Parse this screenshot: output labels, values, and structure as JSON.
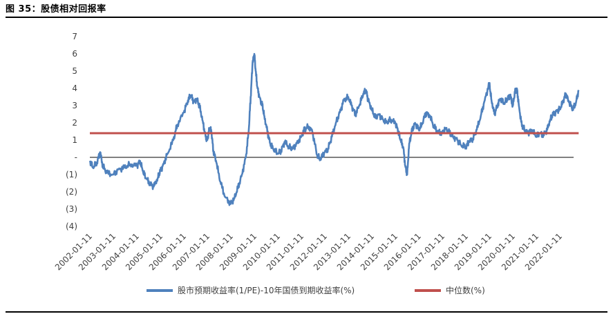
{
  "figure_title": "图 35：股债相对回报率",
  "chart_data": {
    "type": "line",
    "title": "股债相对回报率",
    "ylim": [
      -4,
      7
    ],
    "y_ticks": [
      {
        "value": 7,
        "label": "7"
      },
      {
        "value": 6,
        "label": "6"
      },
      {
        "value": 5,
        "label": "5"
      },
      {
        "value": 4,
        "label": "4"
      },
      {
        "value": 3,
        "label": "3"
      },
      {
        "value": 2,
        "label": "2"
      },
      {
        "value": 1,
        "label": "1"
      },
      {
        "value": 0,
        "label": "-"
      },
      {
        "value": -1,
        "label": "(1)"
      },
      {
        "value": -2,
        "label": "(2)"
      },
      {
        "value": -3,
        "label": "(3)"
      },
      {
        "value": -4,
        "label": "(4)"
      }
    ],
    "x_ticks": [
      "2002-01-11",
      "2003-01-11",
      "2004-01-11",
      "2005-01-11",
      "2006-01-11",
      "2007-01-11",
      "2008-01-11",
      "2009-01-11",
      "2010-01-11",
      "2011-01-11",
      "2012-01-11",
      "2013-01-11",
      "2014-01-11",
      "2015-01-11",
      "2016-01-11",
      "2017-01-11",
      "2018-01-11",
      "2019-01-11",
      "2020-01-11",
      "2021-01-11",
      "2022-01-11"
    ],
    "xlim": [
      "2002-01-11",
      "2022-10-31"
    ],
    "grid": false,
    "legend_position": "bottom",
    "series": [
      {
        "name": "股市预期收益率(1/PE)-10年国债到期收益率(%)",
        "color": "#4F81BD",
        "points": [
          [
            "2002-01-11",
            -0.2
          ],
          [
            "2002-03-01",
            -0.6
          ],
          [
            "2002-05-01",
            -0.3
          ],
          [
            "2002-06-20",
            0.3
          ],
          [
            "2002-08-01",
            -0.5
          ],
          [
            "2002-10-01",
            -0.9
          ],
          [
            "2003-01-11",
            -1.0
          ],
          [
            "2003-04-01",
            -0.7
          ],
          [
            "2003-07-01",
            -0.6
          ],
          [
            "2003-10-01",
            -0.4
          ],
          [
            "2004-01-11",
            -0.5
          ],
          [
            "2004-03-01",
            -0.2
          ],
          [
            "2004-04-15",
            -0.8
          ],
          [
            "2004-06-01",
            -1.2
          ],
          [
            "2004-08-01",
            -1.5
          ],
          [
            "2004-10-01",
            -1.7
          ],
          [
            "2004-12-01",
            -1.2
          ],
          [
            "2005-01-11",
            -0.8
          ],
          [
            "2005-03-01",
            -0.4
          ],
          [
            "2005-05-01",
            0.2
          ],
          [
            "2005-08-01",
            1.0
          ],
          [
            "2005-10-01",
            1.9
          ],
          [
            "2006-01-11",
            2.6
          ],
          [
            "2006-03-15",
            3.3
          ],
          [
            "2006-05-01",
            3.6
          ],
          [
            "2006-06-15",
            3.2
          ],
          [
            "2006-08-01",
            3.4
          ],
          [
            "2006-09-15",
            2.9
          ],
          [
            "2006-11-01",
            2.1
          ],
          [
            "2006-12-15",
            1.2
          ],
          [
            "2007-01-11",
            1.0
          ],
          [
            "2007-02-15",
            1.7
          ],
          [
            "2007-03-15",
            1.5
          ],
          [
            "2007-04-15",
            0.4
          ],
          [
            "2007-06-01",
            -0.3
          ],
          [
            "2007-08-01",
            -1.4
          ],
          [
            "2007-10-15",
            -2.3
          ],
          [
            "2008-01-11",
            -2.7
          ],
          [
            "2008-03-01",
            -2.4
          ],
          [
            "2008-05-01",
            -1.8
          ],
          [
            "2008-07-01",
            -1.0
          ],
          [
            "2008-09-01",
            0.0
          ],
          [
            "2008-10-15",
            1.5
          ],
          [
            "2008-11-15",
            3.5
          ],
          [
            "2008-12-15",
            5.5
          ],
          [
            "2009-01-11",
            6.0
          ],
          [
            "2009-02-01",
            5.0
          ],
          [
            "2009-03-01",
            4.0
          ],
          [
            "2009-04-01",
            3.5
          ],
          [
            "2009-05-15",
            3.0
          ],
          [
            "2009-06-15",
            2.4
          ],
          [
            "2009-08-01",
            1.5
          ],
          [
            "2009-09-15",
            0.8
          ],
          [
            "2009-11-01",
            0.5
          ],
          [
            "2010-01-11",
            0.2
          ],
          [
            "2010-03-01",
            0.4
          ],
          [
            "2010-05-01",
            0.9
          ],
          [
            "2010-07-01",
            0.6
          ],
          [
            "2010-09-01",
            0.5
          ],
          [
            "2010-11-01",
            0.8
          ],
          [
            "2011-01-11",
            1.2
          ],
          [
            "2011-03-01",
            1.6
          ],
          [
            "2011-05-01",
            1.8
          ],
          [
            "2011-07-01",
            1.5
          ],
          [
            "2011-09-15",
            0.1
          ],
          [
            "2011-11-01",
            -0.1
          ],
          [
            "2012-01-11",
            0.3
          ],
          [
            "2012-03-01",
            0.5
          ],
          [
            "2012-05-01",
            1.2
          ],
          [
            "2012-07-01",
            2.0
          ],
          [
            "2012-09-01",
            2.6
          ],
          [
            "2012-11-01",
            3.3
          ],
          [
            "2013-01-11",
            3.5
          ],
          [
            "2013-03-01",
            3.0
          ],
          [
            "2013-05-01",
            2.5
          ],
          [
            "2013-07-01",
            3.0
          ],
          [
            "2013-09-01",
            3.7
          ],
          [
            "2013-10-15",
            3.9
          ],
          [
            "2013-11-15",
            3.3
          ],
          [
            "2014-01-11",
            2.8
          ],
          [
            "2014-03-01",
            2.3
          ],
          [
            "2014-05-01",
            2.5
          ],
          [
            "2014-07-01",
            2.2
          ],
          [
            "2014-09-01",
            2.0
          ],
          [
            "2014-11-01",
            2.2
          ],
          [
            "2015-01-11",
            2.0
          ],
          [
            "2015-03-01",
            1.5
          ],
          [
            "2015-04-01",
            1.0
          ],
          [
            "2015-05-15",
            0.6
          ],
          [
            "2015-06-15",
            -0.5
          ],
          [
            "2015-07-15",
            -1.0
          ],
          [
            "2015-08-15",
            0.8
          ],
          [
            "2015-10-01",
            1.6
          ],
          [
            "2015-11-15",
            2.0
          ],
          [
            "2016-01-11",
            1.6
          ],
          [
            "2016-03-01",
            1.9
          ],
          [
            "2016-05-01",
            2.6
          ],
          [
            "2016-07-01",
            2.4
          ],
          [
            "2016-09-01",
            1.8
          ],
          [
            "2016-11-01",
            1.5
          ],
          [
            "2017-01-11",
            1.4
          ],
          [
            "2017-03-01",
            1.7
          ],
          [
            "2017-05-01",
            1.4
          ],
          [
            "2017-07-01",
            1.2
          ],
          [
            "2017-09-01",
            1.0
          ],
          [
            "2017-11-01",
            0.7
          ],
          [
            "2018-01-11",
            0.6
          ],
          [
            "2018-03-01",
            0.9
          ],
          [
            "2018-05-01",
            1.1
          ],
          [
            "2018-07-01",
            1.6
          ],
          [
            "2018-09-01",
            2.4
          ],
          [
            "2018-11-01",
            3.3
          ],
          [
            "2019-01-11",
            4.3
          ],
          [
            "2019-02-15",
            3.3
          ],
          [
            "2019-04-01",
            2.5
          ],
          [
            "2019-05-15",
            3.0
          ],
          [
            "2019-07-01",
            3.4
          ],
          [
            "2019-09-01",
            3.1
          ],
          [
            "2019-10-15",
            3.4
          ],
          [
            "2019-12-01",
            3.6
          ],
          [
            "2020-01-11",
            3.0
          ],
          [
            "2020-02-15",
            3.8
          ],
          [
            "2020-03-15",
            4.0
          ],
          [
            "2020-04-15",
            3.0
          ],
          [
            "2020-06-01",
            1.8
          ],
          [
            "2020-07-15",
            1.6
          ],
          [
            "2020-09-01",
            1.4
          ],
          [
            "2020-11-01",
            1.6
          ],
          [
            "2021-01-11",
            1.2
          ],
          [
            "2021-03-01",
            1.4
          ],
          [
            "2021-05-01",
            1.3
          ],
          [
            "2021-07-01",
            1.6
          ],
          [
            "2021-08-15",
            2.2
          ],
          [
            "2021-10-01",
            2.5
          ],
          [
            "2021-12-01",
            2.7
          ],
          [
            "2022-01-11",
            2.8
          ],
          [
            "2022-03-01",
            3.2
          ],
          [
            "2022-04-15",
            3.7
          ],
          [
            "2022-06-01",
            3.2
          ],
          [
            "2022-08-01",
            2.8
          ],
          [
            "2022-09-15",
            3.1
          ],
          [
            "2022-10-31",
            3.9
          ]
        ]
      },
      {
        "name": "中位数(%)",
        "color": "#C0504D",
        "points": [
          [
            "2002-01-11",
            1.4
          ],
          [
            "2022-10-31",
            1.4
          ]
        ]
      }
    ]
  }
}
